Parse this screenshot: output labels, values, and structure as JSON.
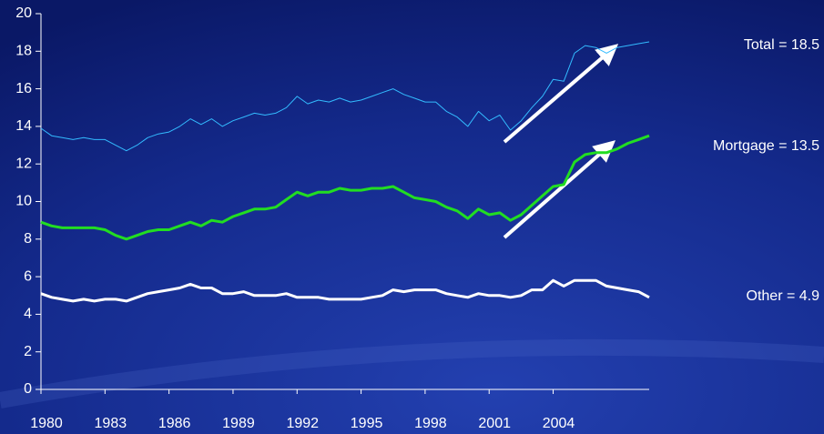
{
  "chart_data": {
    "type": "line",
    "x": [
      1980,
      1980.5,
      1981,
      1981.5,
      1982,
      1982.5,
      1983,
      1983.5,
      1984,
      1984.5,
      1985,
      1985.5,
      1986,
      1986.5,
      1987,
      1987.5,
      1988,
      1988.5,
      1989,
      1989.5,
      1990,
      1990.5,
      1991,
      1991.5,
      1992,
      1992.5,
      1993,
      1993.5,
      1994,
      1994.5,
      1995,
      1995.5,
      1996,
      1996.5,
      1997,
      1997.5,
      1998,
      1998.5,
      1999,
      1999.5,
      2000,
      2000.5,
      2001,
      2001.5,
      2002,
      2002.5,
      2003,
      2003.5,
      2004,
      2004.5,
      2005,
      2005.5,
      2006,
      2006.5,
      2007,
      2007.5,
      2008,
      2008.5
    ],
    "series": [
      {
        "name": "Total = 18.5",
        "color": "#33bbff",
        "width": 1,
        "values": [
          13.9,
          13.5,
          13.4,
          13.3,
          13.4,
          13.3,
          13.3,
          13.0,
          12.7,
          13.0,
          13.4,
          13.6,
          13.7,
          14.0,
          14.4,
          14.1,
          14.4,
          14.0,
          14.3,
          14.5,
          14.7,
          14.6,
          14.7,
          15.0,
          15.6,
          15.2,
          15.4,
          15.3,
          15.5,
          15.3,
          15.4,
          15.6,
          15.8,
          16.0,
          15.7,
          15.5,
          15.3,
          15.3,
          14.8,
          14.5,
          14.0,
          14.8,
          14.3,
          14.6,
          13.8,
          14.3,
          15.0,
          15.6,
          16.5,
          16.4,
          17.9,
          18.3,
          18.2,
          17.9,
          18.2,
          18.3,
          18.4,
          18.5
        ]
      },
      {
        "name": "Mortgage = 13.5",
        "color": "#22dd22",
        "width": 3,
        "values": [
          8.9,
          8.7,
          8.6,
          8.6,
          8.6,
          8.6,
          8.5,
          8.2,
          8.0,
          8.2,
          8.4,
          8.5,
          8.5,
          8.7,
          8.9,
          8.7,
          9.0,
          8.9,
          9.2,
          9.4,
          9.6,
          9.6,
          9.7,
          10.1,
          10.5,
          10.3,
          10.5,
          10.5,
          10.7,
          10.6,
          10.6,
          10.7,
          10.7,
          10.8,
          10.5,
          10.2,
          10.1,
          10.0,
          9.7,
          9.5,
          9.1,
          9.6,
          9.3,
          9.4,
          9.0,
          9.3,
          9.8,
          10.3,
          10.8,
          10.9,
          12.1,
          12.5,
          12.6,
          12.6,
          12.8,
          13.1,
          13.3,
          13.5
        ]
      },
      {
        "name": "Other = 4.9",
        "color": "#ffffff",
        "width": 3,
        "values": [
          5.1,
          4.9,
          4.8,
          4.7,
          4.8,
          4.7,
          4.8,
          4.8,
          4.7,
          4.9,
          5.1,
          5.2,
          5.3,
          5.4,
          5.6,
          5.4,
          5.4,
          5.1,
          5.1,
          5.2,
          5.0,
          5.0,
          5.0,
          5.1,
          4.9,
          4.9,
          4.9,
          4.8,
          4.8,
          4.8,
          4.8,
          4.9,
          5.0,
          5.3,
          5.2,
          5.3,
          5.3,
          5.3,
          5.1,
          5.0,
          4.9,
          5.1,
          5.0,
          5.0,
          4.9,
          5.0,
          5.3,
          5.3,
          5.8,
          5.5,
          5.8,
          5.8,
          5.8,
          5.5,
          5.4,
          5.3,
          5.2,
          4.9
        ]
      }
    ],
    "xlim": [
      1980,
      2008.5
    ],
    "xticks": [
      1980,
      1983,
      1986,
      1989,
      1992,
      1995,
      1998,
      2001,
      2004
    ],
    "ylim": [
      0,
      20
    ],
    "yticks": [
      0,
      2,
      4,
      6,
      8,
      10,
      12,
      14,
      16,
      18,
      20
    ],
    "grid": false
  }
}
